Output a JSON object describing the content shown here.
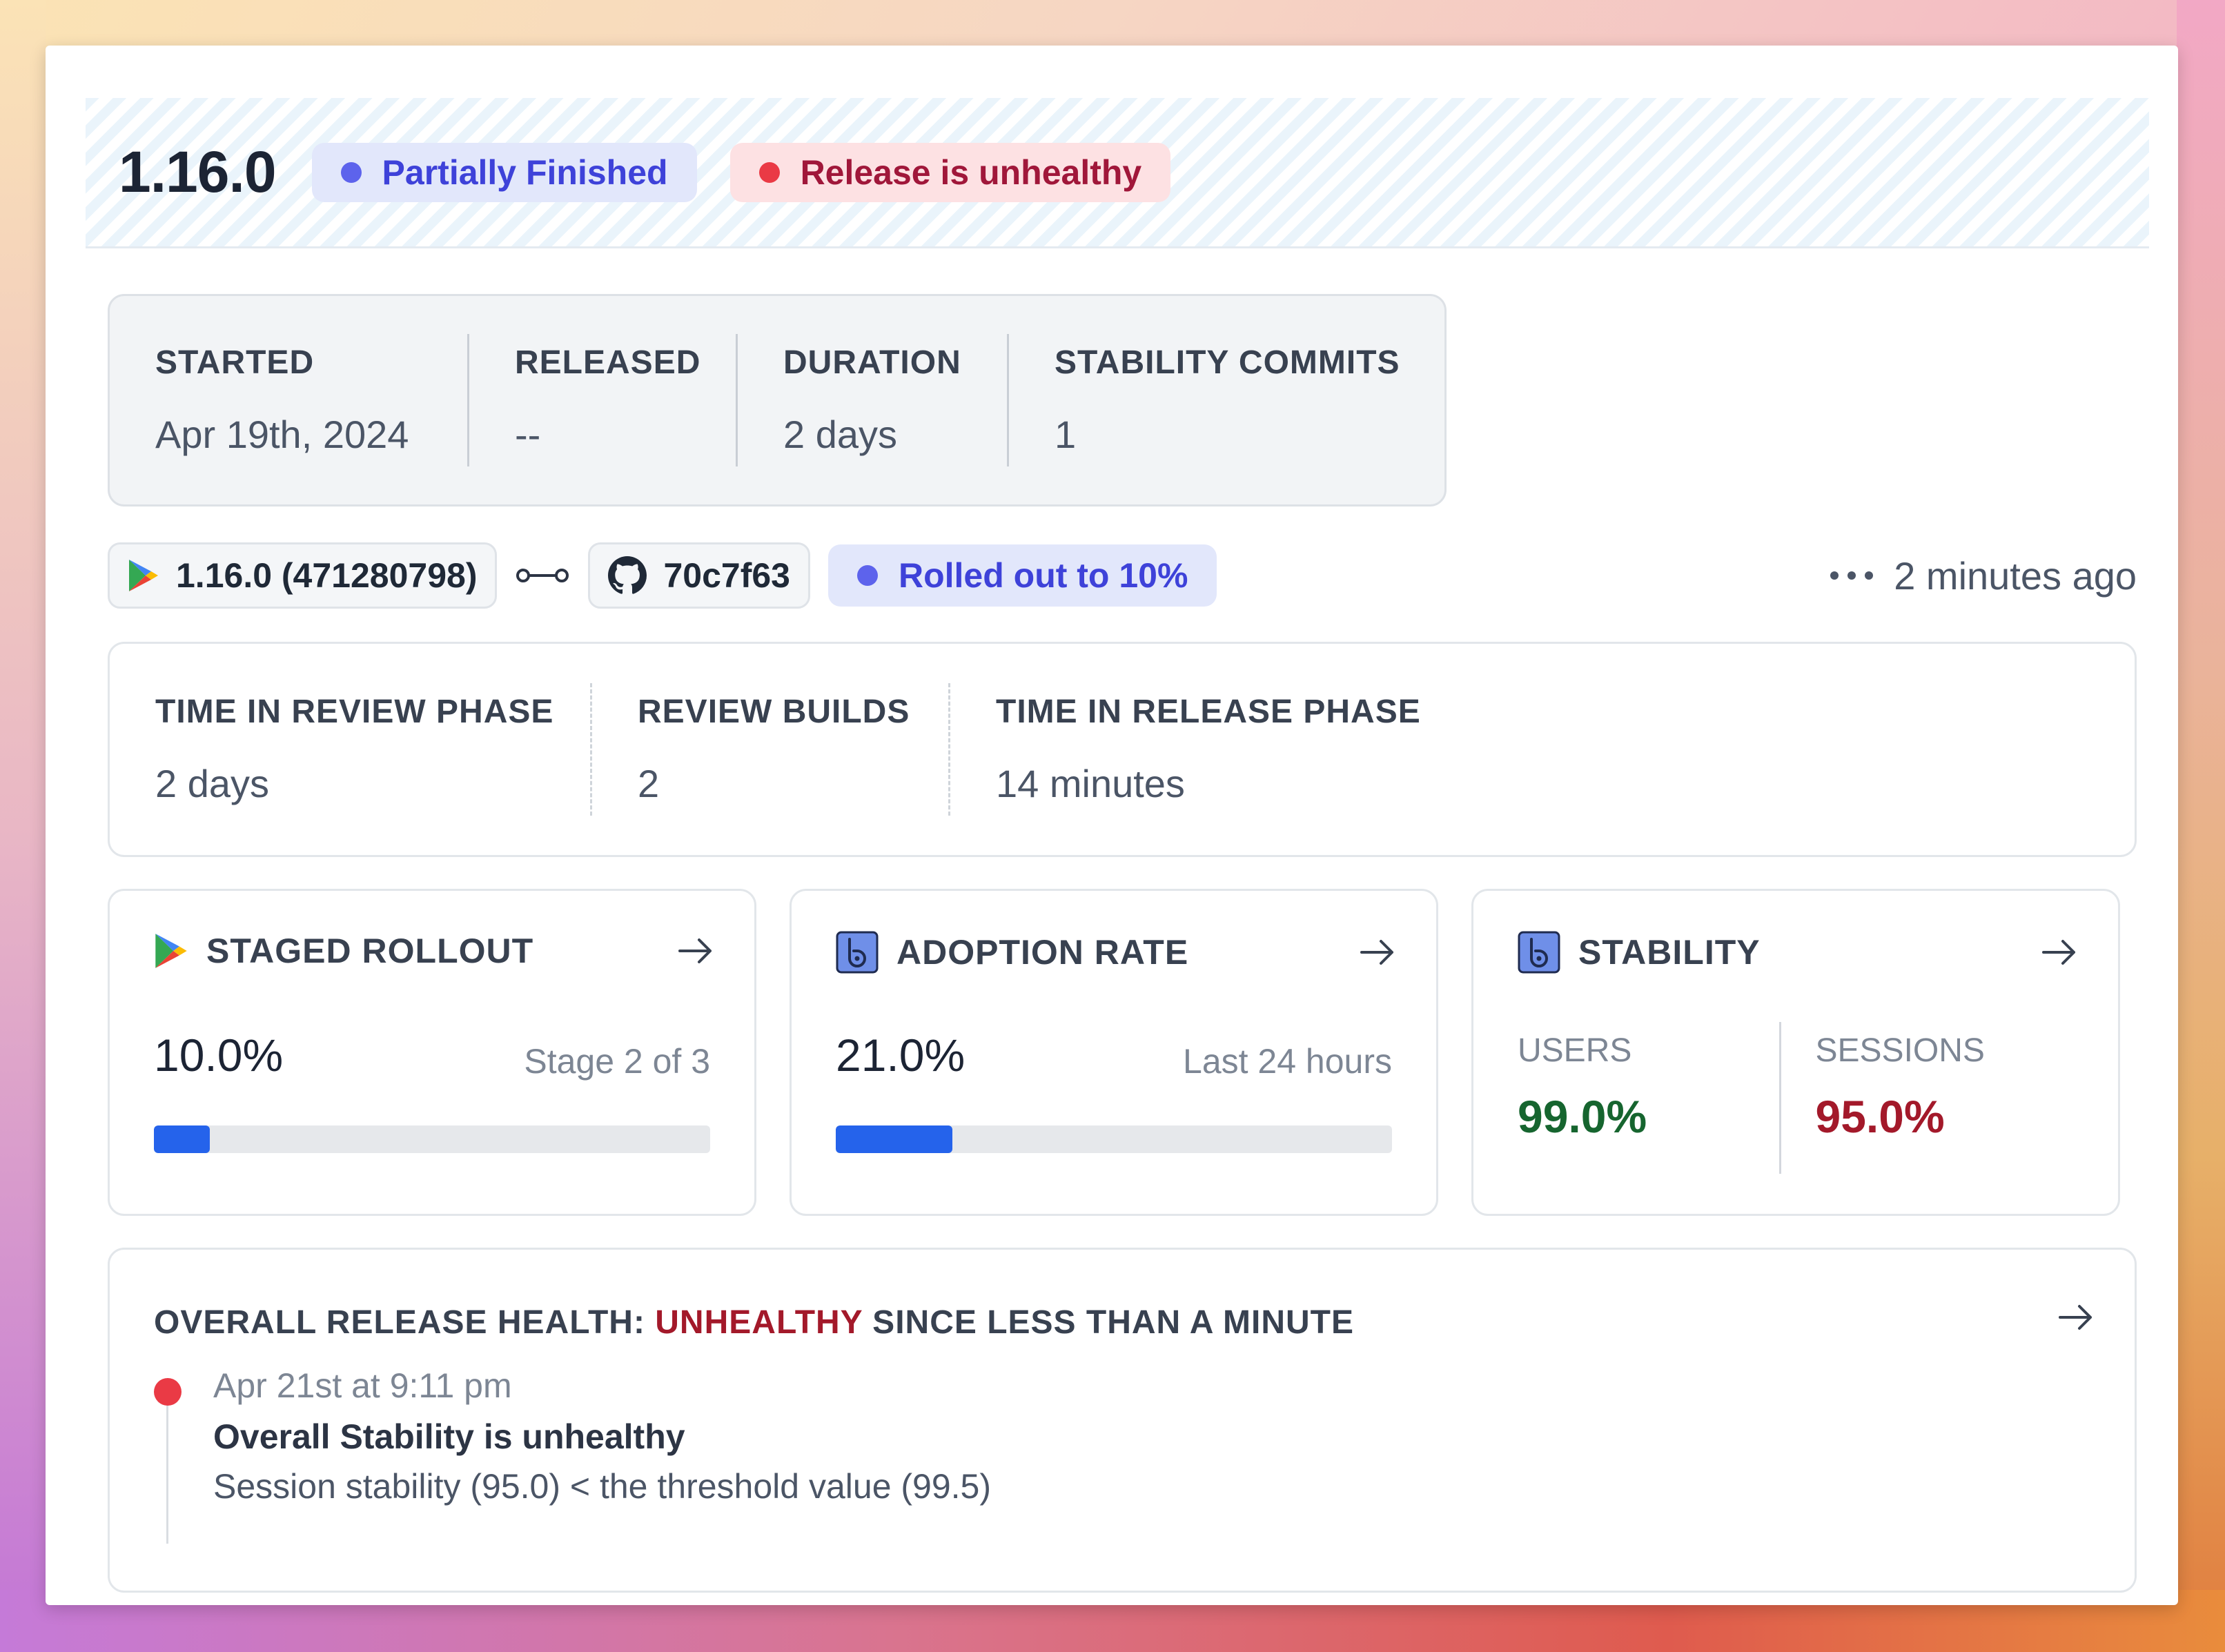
{
  "header": {
    "version": "1.16.0",
    "status_badge": "Partially Finished",
    "health_badge": "Release is unhealthy",
    "colors": {
      "status_dot": "#5d63ec",
      "health_dot": "#ea3a45"
    }
  },
  "stats": [
    {
      "label": "STARTED",
      "value": "Apr 19th, 2024"
    },
    {
      "label": "RELEASED",
      "value": "--"
    },
    {
      "label": "DURATION",
      "value": "2 days"
    },
    {
      "label": "STABILITY COMMITS",
      "value": "1"
    }
  ],
  "build": {
    "play_store_build": "1.16.0 (471280798)",
    "commit": "70c7f63",
    "rollout_badge": "Rolled out to 10%",
    "updated": "2 minutes ago",
    "icons": [
      "play-store-icon",
      "link-icon",
      "github-icon",
      "more-icon"
    ]
  },
  "phases": [
    {
      "label": "TIME IN REVIEW PHASE",
      "value": "2 days"
    },
    {
      "label": "REVIEW BUILDS",
      "value": "2"
    },
    {
      "label": "TIME IN RELEASE PHASE",
      "value": "14 minutes"
    }
  ],
  "staged_rollout": {
    "title": "STAGED ROLLOUT",
    "value": "10.0%",
    "subtitle": "Stage 2 of 3",
    "progress_fraction": 0.1
  },
  "adoption_rate": {
    "title": "ADOPTION RATE",
    "value": "21.0%",
    "subtitle": "Last 24 hours",
    "progress_fraction": 0.21
  },
  "stability": {
    "title": "STABILITY",
    "users_label": "USERS",
    "users_value": "99.0%",
    "sessions_label": "SESSIONS",
    "sessions_value": "95.0%",
    "colors": {
      "users": "#16652f",
      "sessions": "#a3192a"
    }
  },
  "health": {
    "title_prefix": "OVERALL RELEASE HEALTH:",
    "title_status": "UNHEALTHY",
    "title_suffix": "SINCE LESS THAN A MINUTE",
    "event_time": "Apr 21st at 9:11 pm",
    "event_title": "Overall Stability is unhealthy",
    "event_detail": "Session stability (95.0) < the threshold value (99.5)"
  }
}
